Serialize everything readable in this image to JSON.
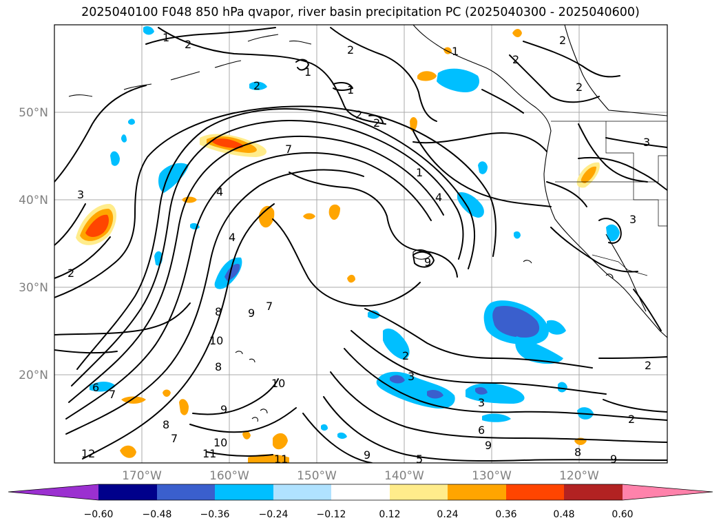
{
  "title": "2025040100 F048 850 hPa qvapor, river basin precipitation PC (2025040300 - 2025040600)",
  "map": {
    "lat_labels": [
      "50°N",
      "40°N",
      "30°N",
      "20°N"
    ],
    "lon_labels": [
      "170°W",
      "160°W",
      "150°W",
      "140°W",
      "130°W",
      "120°W"
    ],
    "contour_labels": [
      "1",
      "2",
      "2",
      "1",
      "2",
      "1",
      "1",
      "2",
      "2",
      "2",
      "7",
      "3",
      "4",
      "4",
      "2",
      "1",
      "4",
      "9",
      "8",
      "9",
      "7",
      "10",
      "8",
      "10",
      "6",
      "7",
      "9",
      "3",
      "3",
      "2",
      "2",
      "2",
      "8",
      "7",
      "12",
      "11",
      "10",
      "11",
      "9",
      "5",
      "9",
      "8",
      "9",
      "6",
      "2",
      "3",
      "3",
      "2"
    ]
  },
  "colorbar": {
    "ticks": [
      "−0.60",
      "−0.48",
      "−0.36",
      "−0.24",
      "−0.12",
      "0.12",
      "0.24",
      "0.36",
      "0.48",
      "0.60"
    ],
    "colors": {
      "below": "#9b30d0",
      "c1": "#00008b",
      "c2": "#3a5fcd",
      "c3": "#00bfff",
      "c4": "#b0e2ff",
      "c5": "#ffffff",
      "c6": "#ffec8b",
      "c7": "#ffa500",
      "c8": "#ff4500",
      "c9": "#b22222",
      "above": "#ff82ab"
    }
  }
}
